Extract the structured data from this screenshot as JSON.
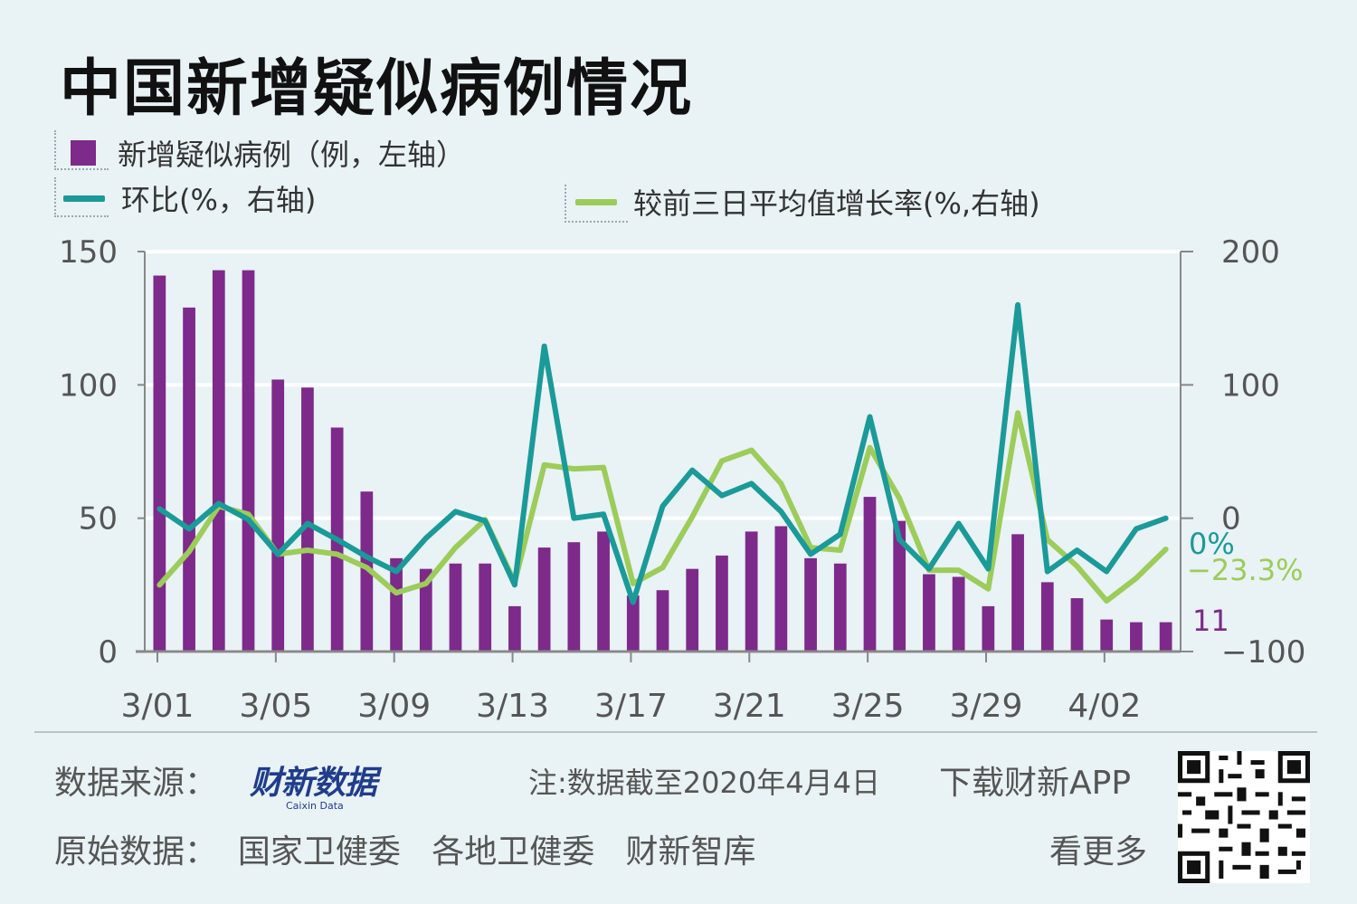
{
  "title": "中国新增疑似病例情况",
  "legend": {
    "bars_label": "新增疑似病例（例，左轴）",
    "mom_label": "环比(%，右轴)",
    "avg_label": "较前三日平均值增长率(%,右轴)"
  },
  "colors": {
    "bar": "#7d2a8b",
    "mom_line": "#1a9a98",
    "avg_line": "#9ccc5a",
    "grid": "#ffffff",
    "axis": "#888888"
  },
  "chart_data": {
    "type": "bar+line",
    "title": "中国新增疑似病例情况",
    "categories": [
      "3/01",
      "3/02",
      "3/03",
      "3/04",
      "3/05",
      "3/06",
      "3/07",
      "3/08",
      "3/09",
      "3/10",
      "3/11",
      "3/12",
      "3/13",
      "3/14",
      "3/15",
      "3/16",
      "3/17",
      "3/18",
      "3/19",
      "3/20",
      "3/21",
      "3/22",
      "3/23",
      "3/24",
      "3/25",
      "3/26",
      "3/27",
      "3/28",
      "3/29",
      "3/30",
      "3/31",
      "4/01",
      "4/02",
      "4/03",
      "4/04"
    ],
    "x_tick_labels": [
      "3/01",
      "3/05",
      "3/09",
      "3/13",
      "3/17",
      "3/21",
      "3/25",
      "3/29",
      "4/02"
    ],
    "left_axis": {
      "ylim": [
        0,
        150
      ],
      "ticks": [
        "0",
        "50",
        "100",
        "150"
      ]
    },
    "right_axis": {
      "ylim": [
        -100,
        200
      ],
      "ticks": [
        "−100",
        "0",
        "100",
        "200"
      ]
    },
    "series": [
      {
        "name": "新增疑似病例（例，左轴）",
        "type": "bar",
        "axis": "left",
        "values": [
          141,
          129,
          143,
          143,
          102,
          99,
          84,
          60,
          35,
          31,
          33,
          33,
          17,
          39,
          41,
          45,
          21,
          23,
          31,
          36,
          45,
          47,
          35,
          33,
          58,
          49,
          29,
          28,
          17,
          44,
          26,
          20,
          12,
          11,
          11
        ]
      },
      {
        "name": "环比(%，右轴)",
        "type": "line",
        "axis": "right",
        "values": [
          7,
          -8,
          11,
          -1,
          -27,
          -4,
          -16,
          -29,
          -40,
          -15,
          5,
          -2,
          -50,
          129,
          0,
          3,
          -63,
          9,
          36,
          17,
          26,
          5,
          -27,
          -12,
          76,
          -16,
          -38,
          -4,
          -38,
          160,
          -40,
          -24,
          -40,
          -8,
          0
        ]
      },
      {
        "name": "较前三日平均值增长率(%,右轴)",
        "type": "line",
        "axis": "right",
        "values": [
          -50,
          -25,
          9,
          3,
          -27,
          -24,
          -27,
          -37,
          -56,
          -49,
          -22,
          -1,
          -48,
          40,
          37,
          38,
          -49,
          -37,
          1,
          43,
          51,
          26,
          -22,
          -24,
          53,
          15,
          -39,
          -39,
          -53,
          79,
          -16,
          -36,
          -62,
          -45,
          -23.3
        ]
      }
    ],
    "end_labels": {
      "mom": "0%",
      "avg": "−23.3%",
      "bar": "11"
    },
    "grid": true,
    "legend_position": "top-left"
  },
  "footer": {
    "source_label": "数据来源：",
    "brand_name": "财新数据",
    "brand_sub": "Caixin Data",
    "note": "注:数据截至2020年4月4日",
    "download": "下载财新APP",
    "raw_data": "原始数据：  国家卫健委   各地卫健委   财新智库",
    "see_more": "看更多"
  }
}
